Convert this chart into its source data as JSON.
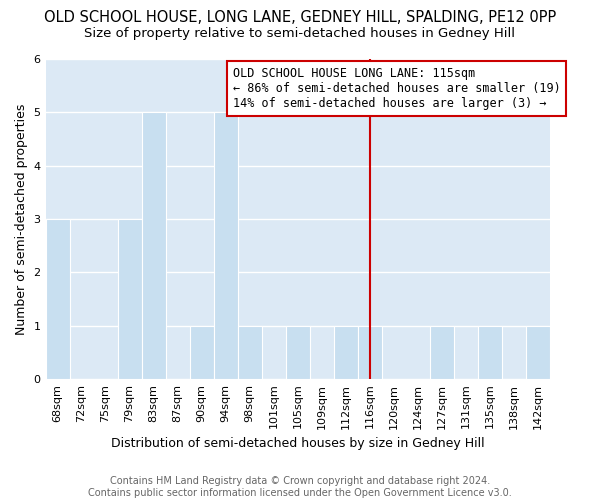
{
  "title": "OLD SCHOOL HOUSE, LONG LANE, GEDNEY HILL, SPALDING, PE12 0PP",
  "subtitle": "Size of property relative to semi-detached houses in Gedney Hill",
  "xlabel": "Distribution of semi-detached houses by size in Gedney Hill",
  "ylabel": "Number of semi-detached properties",
  "footer_line1": "Contains HM Land Registry data © Crown copyright and database right 2024.",
  "footer_line2": "Contains public sector information licensed under the Open Government Licence v3.0.",
  "bin_labels": [
    "68sqm",
    "72sqm",
    "75sqm",
    "79sqm",
    "83sqm",
    "87sqm",
    "90sqm",
    "94sqm",
    "98sqm",
    "101sqm",
    "105sqm",
    "109sqm",
    "112sqm",
    "116sqm",
    "120sqm",
    "124sqm",
    "127sqm",
    "131sqm",
    "135sqm",
    "138sqm",
    "142sqm"
  ],
  "bin_values": [
    3,
    0,
    0,
    3,
    5,
    0,
    1,
    5,
    1,
    0,
    1,
    0,
    1,
    1,
    0,
    0,
    1,
    0,
    1,
    0,
    1
  ],
  "bar_color": "#c8dff0",
  "bar_edge_color": "white",
  "vline_x_index": 13.0,
  "vline_color": "#cc0000",
  "annotation_text": "OLD SCHOOL HOUSE LONG LANE: 115sqm\n← 86% of semi-detached houses are smaller (19)\n14% of semi-detached houses are larger (3) →",
  "annotation_box_color": "white",
  "annotation_box_edge": "#cc0000",
  "ylim": [
    0,
    6
  ],
  "yticks": [
    0,
    1,
    2,
    3,
    4,
    5,
    6
  ],
  "background_color": "white",
  "plot_bg_color": "#dce9f5",
  "grid_color": "white",
  "title_fontsize": 10.5,
  "subtitle_fontsize": 9.5,
  "axis_label_fontsize": 9,
  "tick_fontsize": 8,
  "annotation_fontsize": 8.5,
  "footer_fontsize": 7
}
